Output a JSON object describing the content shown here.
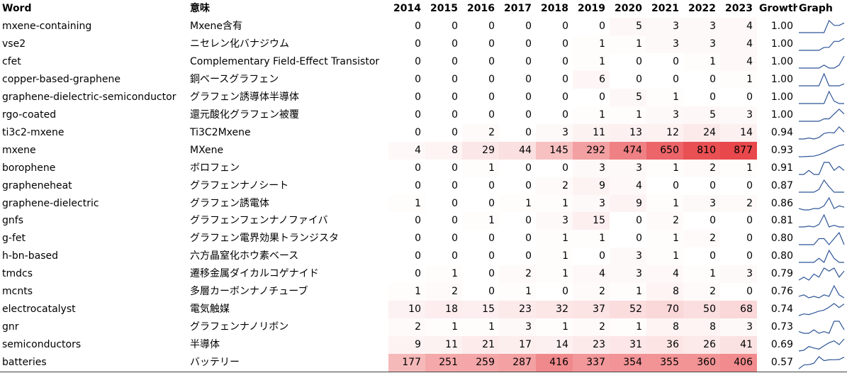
{
  "headers": {
    "word": "Word",
    "meaning": "意味",
    "years": [
      "2014",
      "2015",
      "2016",
      "2017",
      "2018",
      "2019",
      "2020",
      "2021",
      "2022",
      "2023"
    ],
    "growth": "Growth",
    "graph": "Graph"
  },
  "colors": {
    "heat_low": "#ffffff",
    "heat_high": "#e8474b",
    "sparkline": "#2f5597",
    "text": "#000000"
  },
  "heat_max": 877,
  "rows": [
    {
      "word": "mxene-containing",
      "meaning": "Mxene含有",
      "values": [
        0,
        0,
        0,
        0,
        0,
        0,
        5,
        3,
        3,
        4
      ],
      "growth": "1.00"
    },
    {
      "word": "vse2",
      "meaning": "ニセレン化バナジウム",
      "values": [
        0,
        0,
        0,
        0,
        0,
        1,
        1,
        3,
        3,
        4
      ],
      "growth": "1.00"
    },
    {
      "word": "cfet",
      "meaning": "Complementary Field-Effect Transistor",
      "values": [
        0,
        0,
        0,
        0,
        0,
        1,
        0,
        0,
        1,
        4
      ],
      "growth": "1.00"
    },
    {
      "word": "copper-based-graphene",
      "meaning": "銅ベースグラフェン",
      "values": [
        0,
        0,
        0,
        0,
        0,
        6,
        0,
        0,
        0,
        1
      ],
      "growth": "1.00"
    },
    {
      "word": "graphene-dielectric-semiconductor",
      "meaning": "グラフェン誘導体半導体",
      "values": [
        0,
        0,
        0,
        0,
        0,
        0,
        5,
        1,
        0,
        0
      ],
      "growth": "1.00"
    },
    {
      "word": "rgo-coated",
      "meaning": "還元酸化グラフェン被覆",
      "values": [
        0,
        0,
        0,
        0,
        0,
        1,
        1,
        3,
        5,
        3
      ],
      "growth": "1.00"
    },
    {
      "word": "ti3c2-mxene",
      "meaning": "Ti3C2Mxene",
      "values": [
        0,
        0,
        2,
        0,
        3,
        11,
        13,
        12,
        24,
        14
      ],
      "growth": "0.94"
    },
    {
      "word": "mxene",
      "meaning": "MXene",
      "values": [
        4,
        8,
        29,
        44,
        145,
        292,
        474,
        650,
        810,
        877
      ],
      "growth": "0.93"
    },
    {
      "word": "borophene",
      "meaning": "ボロフェン",
      "values": [
        0,
        0,
        1,
        0,
        0,
        3,
        3,
        1,
        2,
        1
      ],
      "growth": "0.91"
    },
    {
      "word": "grapheneheat",
      "meaning": "グラフェンナノシート",
      "values": [
        0,
        0,
        0,
        0,
        2,
        9,
        4,
        0,
        0,
        0
      ],
      "growth": "0.87"
    },
    {
      "word": "graphene-dielectric",
      "meaning": "グラフェン誘電体",
      "values": [
        1,
        0,
        0,
        1,
        1,
        3,
        9,
        1,
        3,
        2
      ],
      "growth": "0.86"
    },
    {
      "word": "gnfs",
      "meaning": "グラフェンフェンナノファイバ",
      "values": [
        0,
        0,
        1,
        0,
        3,
        15,
        0,
        2,
        0,
        0
      ],
      "growth": "0.81"
    },
    {
      "word": "g-fet",
      "meaning": "グラフェン電界効果トランジスタ",
      "values": [
        0,
        0,
        0,
        0,
        1,
        1,
        0,
        1,
        2,
        0
      ],
      "growth": "0.80"
    },
    {
      "word": "h-bn-based",
      "meaning": "六方晶窒化ホウ素ベース",
      "values": [
        0,
        0,
        0,
        0,
        1,
        0,
        3,
        1,
        0,
        0
      ],
      "growth": "0.80"
    },
    {
      "word": "tmdcs",
      "meaning": "遷移金属ダイカルコゲナイド",
      "values": [
        0,
        1,
        0,
        2,
        1,
        4,
        3,
        4,
        1,
        3
      ],
      "growth": "0.79"
    },
    {
      "word": "mcnts",
      "meaning": "多層カーボンナノチューブ",
      "values": [
        1,
        2,
        0,
        1,
        0,
        2,
        1,
        8,
        2,
        0
      ],
      "growth": "0.76"
    },
    {
      "word": "electrocatalyst",
      "meaning": "電気触媒",
      "values": [
        10,
        18,
        15,
        23,
        32,
        37,
        52,
        70,
        50,
        68
      ],
      "growth": "0.74"
    },
    {
      "word": "gnr",
      "meaning": "グラフェンナノリボン",
      "values": [
        2,
        1,
        1,
        3,
        1,
        2,
        1,
        8,
        8,
        3
      ],
      "growth": "0.73"
    },
    {
      "word": "semiconductors",
      "meaning": "半導体",
      "values": [
        9,
        11,
        21,
        17,
        14,
        23,
        31,
        36,
        26,
        41
      ],
      "growth": "0.69"
    },
    {
      "word": "batteries",
      "meaning": "バッテリー",
      "values": [
        177,
        251,
        259,
        287,
        416,
        337,
        354,
        355,
        360,
        406
      ],
      "growth": "0.57"
    }
  ]
}
